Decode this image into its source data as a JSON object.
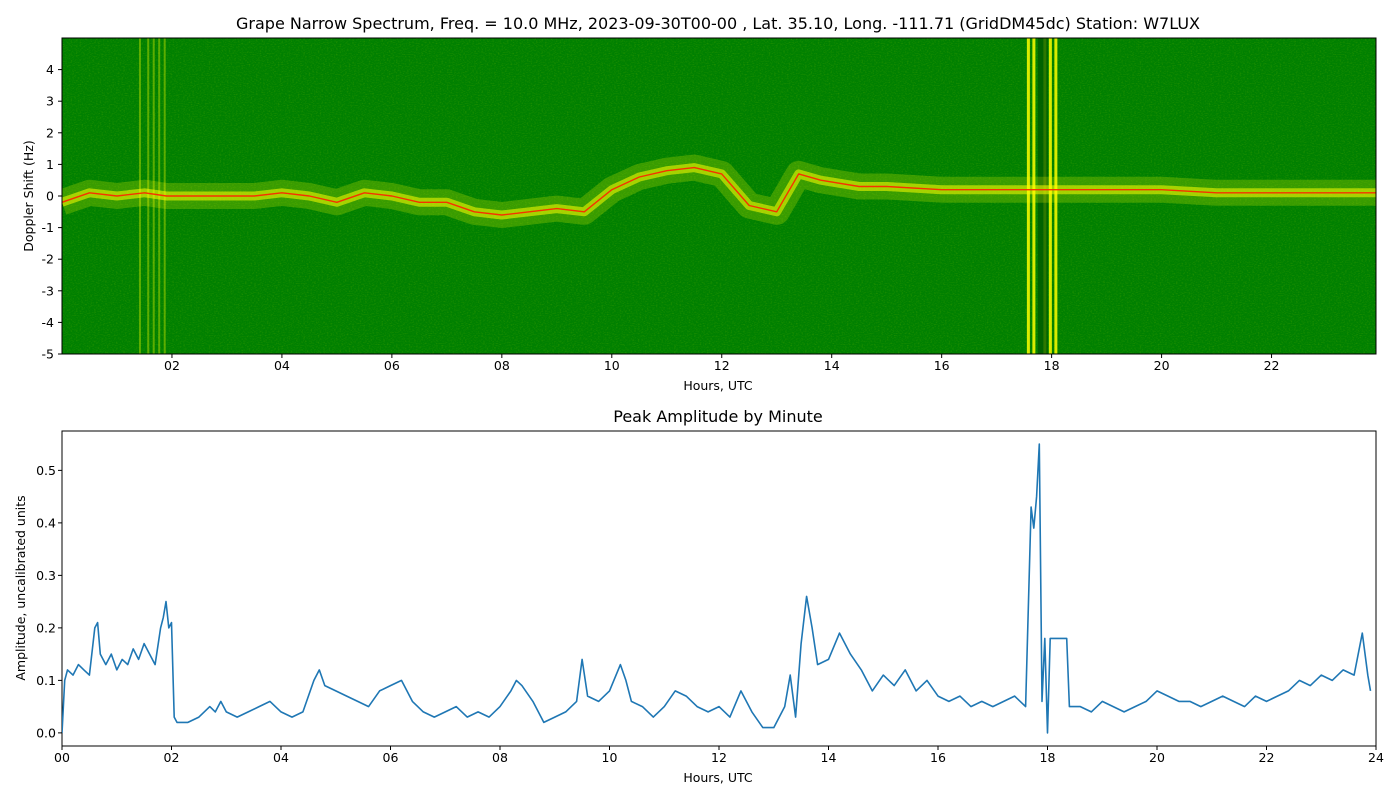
{
  "spectrum": {
    "title": "Grape Narrow Spectrum, Freq. = 10.0 MHz, 2023-09-30T00-00 , Lat.  35.10, Long. -111.71 (GridDM45dc) Station: W7LUX",
    "xlabel": "Hours, UTC",
    "ylabel": "Doppler Shift (Hz)",
    "x_ticks": [
      "02",
      "04",
      "06",
      "08",
      "10",
      "12",
      "14",
      "16",
      "18",
      "20",
      "22"
    ],
    "y_ticks": [
      "4",
      "3",
      "2",
      "1",
      "0",
      "-1",
      "-2",
      "-3",
      "-4",
      "-5"
    ],
    "colors": {
      "background": "#008000",
      "signal": "#ffff00",
      "peak": "#ff2000"
    }
  },
  "amplitude": {
    "title": "Peak Amplitude by Minute",
    "xlabel": "Hours, UTC",
    "ylabel": "Amplitude, uncalibrated units",
    "x_ticks": [
      "00",
      "02",
      "04",
      "06",
      "08",
      "10",
      "12",
      "14",
      "16",
      "18",
      "20",
      "22",
      "24"
    ],
    "y_ticks": [
      "0.0",
      "0.1",
      "0.2",
      "0.3",
      "0.4",
      "0.5"
    ],
    "line_color": "#1f77b4"
  },
  "chart_data": [
    {
      "type": "heatmap",
      "title": "Grape Narrow Spectrum, Freq. = 10.0 MHz, 2023-09-30T00-00 , Lat.  35.10, Long. -111.71 (GridDM45dc) Station: W7LUX",
      "xlabel": "Hours, UTC",
      "ylabel": "Doppler Shift (Hz)",
      "xlim": [
        0,
        23.9
      ],
      "ylim": [
        -5,
        5
      ],
      "grid": false,
      "doppler_trace": {
        "x": [
          0.0,
          0.5,
          1.0,
          1.5,
          1.9,
          2.3,
          3.0,
          3.5,
          4.0,
          4.5,
          5.0,
          5.5,
          6.0,
          6.5,
          7.0,
          7.5,
          8.0,
          8.5,
          9.0,
          9.5,
          10.0,
          10.5,
          11.0,
          11.5,
          12.0,
          12.5,
          13.0,
          13.4,
          13.8,
          14.5,
          15.0,
          16.0,
          17.0,
          18.0,
          19.0,
          20.0,
          21.0,
          22.0,
          23.0,
          23.9
        ],
        "y": [
          -0.2,
          0.1,
          0.0,
          0.1,
          0.0,
          0.0,
          0.0,
          0.0,
          0.1,
          0.0,
          -0.2,
          0.1,
          0.0,
          -0.2,
          -0.2,
          -0.5,
          -0.6,
          -0.5,
          -0.4,
          -0.5,
          0.2,
          0.6,
          0.8,
          0.9,
          0.7,
          -0.3,
          -0.5,
          0.7,
          0.5,
          0.3,
          0.3,
          0.2,
          0.2,
          0.2,
          0.2,
          0.2,
          0.1,
          0.1,
          0.1,
          0.1
        ]
      }
    },
    {
      "type": "line",
      "title": "Peak Amplitude by Minute",
      "xlabel": "Hours, UTC",
      "ylabel": "Amplitude, uncalibrated units",
      "xlim": [
        0,
        24
      ],
      "ylim": [
        -0.025,
        0.575
      ],
      "grid": false,
      "series": [
        {
          "x": [
            0.0,
            0.05,
            0.1,
            0.2,
            0.3,
            0.4,
            0.5,
            0.6,
            0.65,
            0.7,
            0.8,
            0.9,
            1.0,
            1.1,
            1.2,
            1.3,
            1.4,
            1.5,
            1.6,
            1.7,
            1.8,
            1.85,
            1.9,
            1.95,
            2.0,
            2.05,
            2.1,
            2.3,
            2.5,
            2.7,
            2.8,
            2.9,
            3.0,
            3.2,
            3.4,
            3.6,
            3.8,
            4.0,
            4.2,
            4.4,
            4.6,
            4.7,
            4.8,
            5.0,
            5.2,
            5.4,
            5.6,
            5.8,
            6.0,
            6.2,
            6.4,
            6.6,
            6.8,
            7.0,
            7.2,
            7.4,
            7.6,
            7.8,
            8.0,
            8.2,
            8.3,
            8.4,
            8.6,
            8.8,
            9.0,
            9.2,
            9.4,
            9.5,
            9.6,
            9.8,
            10.0,
            10.2,
            10.3,
            10.4,
            10.6,
            10.8,
            11.0,
            11.2,
            11.4,
            11.6,
            11.8,
            12.0,
            12.2,
            12.4,
            12.6,
            12.8,
            13.0,
            13.2,
            13.3,
            13.4,
            13.5,
            13.6,
            13.7,
            13.8,
            14.0,
            14.2,
            14.4,
            14.6,
            14.8,
            15.0,
            15.2,
            15.4,
            15.6,
            15.8,
            16.0,
            16.2,
            16.4,
            16.6,
            16.8,
            17.0,
            17.2,
            17.4,
            17.6,
            17.7,
            17.75,
            17.8,
            17.85,
            17.9,
            17.95,
            18.0,
            18.05,
            18.1,
            18.3,
            18.35,
            18.4,
            18.6,
            18.8,
            19.0,
            19.2,
            19.4,
            19.6,
            19.8,
            20.0,
            20.2,
            20.4,
            20.6,
            20.8,
            21.0,
            21.2,
            21.4,
            21.6,
            21.8,
            22.0,
            22.2,
            22.4,
            22.6,
            22.8,
            23.0,
            23.2,
            23.4,
            23.6,
            23.75,
            23.85,
            23.9
          ],
          "values": [
            0.0,
            0.1,
            0.12,
            0.11,
            0.13,
            0.12,
            0.11,
            0.2,
            0.21,
            0.15,
            0.13,
            0.15,
            0.12,
            0.14,
            0.13,
            0.16,
            0.14,
            0.17,
            0.15,
            0.13,
            0.2,
            0.22,
            0.25,
            0.2,
            0.21,
            0.03,
            0.02,
            0.02,
            0.03,
            0.05,
            0.04,
            0.06,
            0.04,
            0.03,
            0.04,
            0.05,
            0.06,
            0.04,
            0.03,
            0.04,
            0.1,
            0.12,
            0.09,
            0.08,
            0.07,
            0.06,
            0.05,
            0.08,
            0.09,
            0.1,
            0.06,
            0.04,
            0.03,
            0.04,
            0.05,
            0.03,
            0.04,
            0.03,
            0.05,
            0.08,
            0.1,
            0.09,
            0.06,
            0.02,
            0.03,
            0.04,
            0.06,
            0.14,
            0.07,
            0.06,
            0.08,
            0.13,
            0.1,
            0.06,
            0.05,
            0.03,
            0.05,
            0.08,
            0.07,
            0.05,
            0.04,
            0.05,
            0.03,
            0.08,
            0.04,
            0.01,
            0.01,
            0.05,
            0.11,
            0.03,
            0.17,
            0.26,
            0.2,
            0.13,
            0.14,
            0.19,
            0.15,
            0.12,
            0.08,
            0.11,
            0.09,
            0.12,
            0.08,
            0.1,
            0.07,
            0.06,
            0.07,
            0.05,
            0.06,
            0.05,
            0.06,
            0.07,
            0.05,
            0.43,
            0.39,
            0.45,
            0.55,
            0.06,
            0.18,
            0.0,
            0.18,
            0.18,
            0.18,
            0.18,
            0.05,
            0.05,
            0.04,
            0.06,
            0.05,
            0.04,
            0.05,
            0.06,
            0.08,
            0.07,
            0.06,
            0.06,
            0.05,
            0.06,
            0.07,
            0.06,
            0.05,
            0.07,
            0.06,
            0.07,
            0.08,
            0.1,
            0.09,
            0.11,
            0.1,
            0.12,
            0.11,
            0.19,
            0.11,
            0.08
          ]
        }
      ]
    }
  ]
}
